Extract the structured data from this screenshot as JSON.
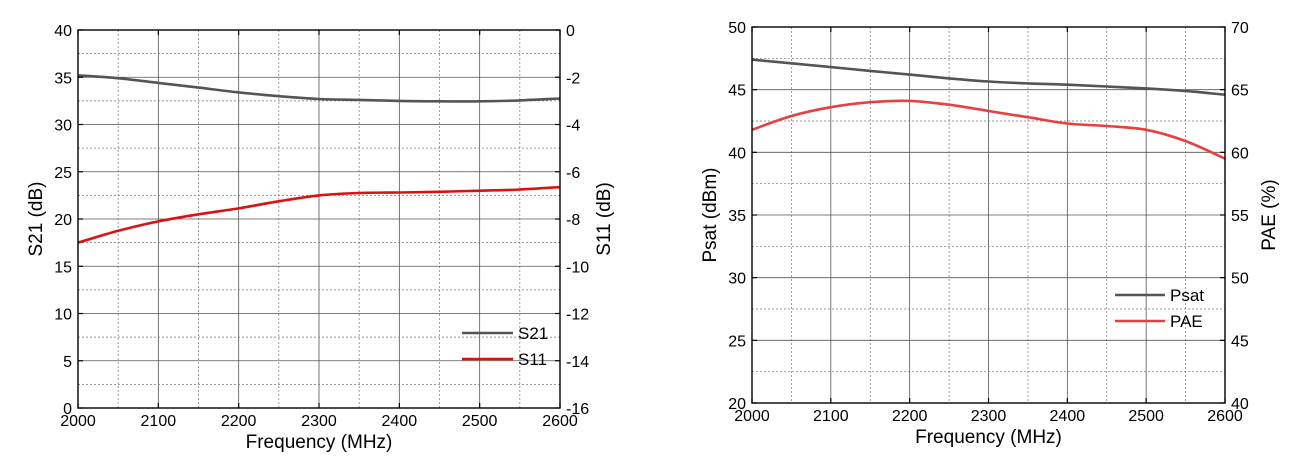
{
  "chart_data": [
    {
      "type": "line",
      "xlabel": "Frequency (MHz)",
      "ylabel_left": "S21 (dB)",
      "ylabel_right": "S11 (dB)",
      "xlim": [
        2000,
        2600
      ],
      "ylim_left": [
        0,
        40
      ],
      "ylim_right": [
        -16,
        0
      ],
      "x_ticks": [
        "2000",
        "2100",
        "2200",
        "2300",
        "2400",
        "2500",
        "2600"
      ],
      "y_ticks_left": [
        "0",
        "5",
        "10",
        "15",
        "20",
        "25",
        "30",
        "35",
        "40"
      ],
      "y_ticks_right": [
        "-16",
        "-14",
        "-12",
        "-10",
        "-8",
        "-6",
        "-4",
        "-2",
        "0"
      ],
      "grid": true,
      "legend_position": "bottom-right",
      "series": [
        {
          "name": "S21",
          "axis": "left",
          "color": "#555555",
          "x": [
            2000,
            2050,
            2100,
            2150,
            2200,
            2250,
            2300,
            2350,
            2400,
            2450,
            2500,
            2550,
            2600
          ],
          "values": [
            35.2,
            34.9,
            34.4,
            33.9,
            33.4,
            33.0,
            32.7,
            32.6,
            32.5,
            32.45,
            32.45,
            32.55,
            32.75
          ]
        },
        {
          "name": "S11",
          "axis": "right",
          "color": "#dd1111",
          "x": [
            2000,
            2050,
            2100,
            2150,
            2200,
            2250,
            2300,
            2350,
            2400,
            2450,
            2500,
            2550,
            2600
          ],
          "values": [
            -9.0,
            -8.5,
            -8.1,
            -7.8,
            -7.55,
            -7.25,
            -7.0,
            -6.9,
            -6.88,
            -6.85,
            -6.8,
            -6.75,
            -6.65
          ]
        }
      ]
    },
    {
      "type": "line",
      "xlabel": "Frequency (MHz)",
      "ylabel_left": "Psat (dBm)",
      "ylabel_right": "PAE (%)",
      "xlim": [
        2000,
        2600
      ],
      "ylim_left": [
        20,
        50
      ],
      "ylim_right": [
        40,
        70
      ],
      "x_ticks": [
        "2000",
        "2100",
        "2200",
        "2300",
        "2400",
        "2500",
        "2600"
      ],
      "y_ticks_left": [
        "20",
        "25",
        "30",
        "35",
        "40",
        "45",
        "50"
      ],
      "y_ticks_right": [
        "40",
        "45",
        "50",
        "55",
        "60",
        "65",
        "70"
      ],
      "grid": true,
      "legend_position": "bottom-right",
      "series": [
        {
          "name": "Psat",
          "axis": "left",
          "color": "#555555",
          "x": [
            2000,
            2050,
            2100,
            2150,
            2200,
            2250,
            2300,
            2350,
            2400,
            2450,
            2500,
            2550,
            2600
          ],
          "values": [
            47.4,
            47.1,
            46.8,
            46.5,
            46.2,
            45.9,
            45.65,
            45.5,
            45.4,
            45.25,
            45.1,
            44.9,
            44.6
          ]
        },
        {
          "name": "PAE",
          "axis": "right",
          "color": "#e84040",
          "x": [
            2000,
            2050,
            2100,
            2150,
            2200,
            2250,
            2300,
            2350,
            2400,
            2450,
            2500,
            2550,
            2600
          ],
          "values": [
            61.8,
            62.9,
            63.6,
            64.0,
            64.1,
            63.8,
            63.3,
            62.8,
            62.3,
            62.1,
            61.8,
            60.9,
            59.5
          ]
        }
      ]
    }
  ]
}
